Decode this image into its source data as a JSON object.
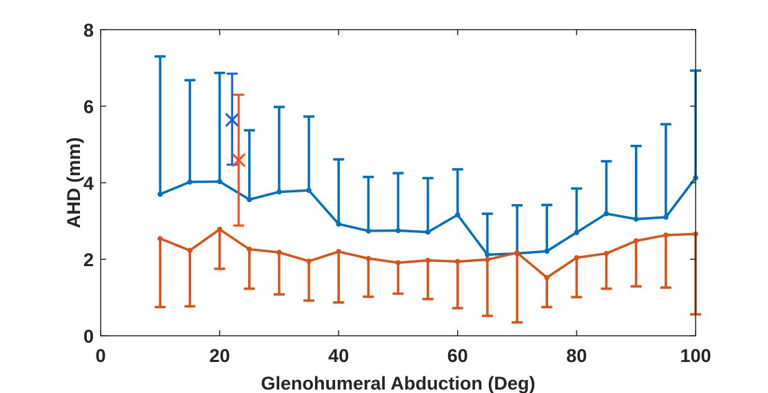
{
  "chart_data": {
    "type": "line",
    "title": "",
    "xlabel": "Glenohumeral Abduction (Deg)",
    "ylabel": "AHD (mm)",
    "xlim": [
      0,
      100
    ],
    "ylim": [
      0,
      8
    ],
    "xticks": [
      0,
      20,
      40,
      60,
      80,
      100
    ],
    "yticks": [
      0,
      2,
      4,
      6,
      8
    ],
    "grid": false,
    "series": [
      {
        "name": "series-blue",
        "color": "#0072BD",
        "cap_direction": "up",
        "x": [
          10,
          15,
          20,
          25,
          30,
          35,
          40,
          45,
          50,
          55,
          60,
          65,
          70,
          75,
          80,
          85,
          90,
          95,
          100
        ],
        "y": [
          3.7,
          4.02,
          4.03,
          3.56,
          3.76,
          3.8,
          2.92,
          2.74,
          2.75,
          2.71,
          3.16,
          2.12,
          2.15,
          2.21,
          2.7,
          3.19,
          3.05,
          3.1,
          4.13
        ],
        "err_bound": [
          7.3,
          6.68,
          6.87,
          5.37,
          5.98,
          5.73,
          4.61,
          4.15,
          4.25,
          4.12,
          4.35,
          3.19,
          3.41,
          3.42,
          3.85,
          4.56,
          4.96,
          5.53,
          6.93
        ]
      },
      {
        "name": "series-orange",
        "color": "#D95319",
        "cap_direction": "down",
        "x": [
          10,
          15,
          20,
          25,
          30,
          35,
          40,
          45,
          50,
          55,
          60,
          65,
          70,
          75,
          80,
          85,
          90,
          95,
          100
        ],
        "y": [
          2.54,
          2.23,
          2.78,
          2.26,
          2.18,
          1.95,
          2.2,
          2.02,
          1.91,
          1.97,
          1.94,
          1.99,
          2.17,
          1.52,
          2.04,
          2.15,
          2.48,
          2.63,
          2.66
        ],
        "err_bound": [
          0.75,
          0.77,
          1.75,
          1.23,
          1.08,
          0.92,
          0.87,
          1.02,
          1.1,
          0.96,
          0.72,
          0.52,
          0.35,
          0.75,
          1.01,
          1.23,
          1.29,
          1.26,
          0.56
        ]
      }
    ],
    "markers": [
      {
        "name": "blue-x-marker",
        "color": "#1A5EE6",
        "x": 22.1,
        "y": 5.64,
        "err_low": 4.47,
        "err_high": 6.85
      },
      {
        "name": "orange-x-marker",
        "color": "#FF4A1A",
        "x": 23.2,
        "y": 4.59,
        "err_low": 2.88,
        "err_high": 6.3
      }
    ]
  }
}
